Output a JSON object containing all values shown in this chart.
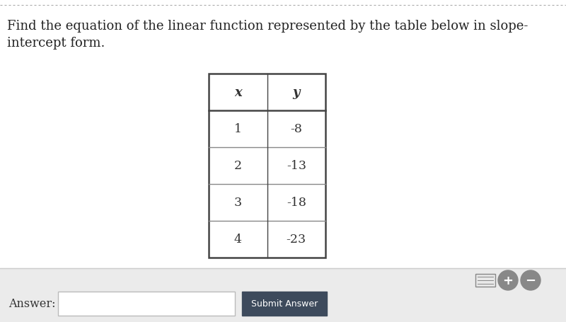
{
  "title_line1": "Find the equation of the linear function represented by the table below in slope-",
  "title_line2": "intercept form.",
  "title_fontsize": 13.0,
  "title_color": "#222222",
  "background_color": "#ffffff",
  "table_headers": [
    "x",
    "y"
  ],
  "table_x": [
    "1",
    "2",
    "3",
    "4"
  ],
  "table_y": [
    "-8",
    "-13",
    "-18",
    "-23"
  ],
  "answer_label": "Answer:",
  "submit_label": "Submit Answer",
  "submit_bg": "#3d4a5c",
  "submit_text_color": "#ffffff",
  "footer_bg": "#ebebeb",
  "table_border_color": "#444444",
  "header_fontsize": 13,
  "cell_fontsize": 12.5
}
